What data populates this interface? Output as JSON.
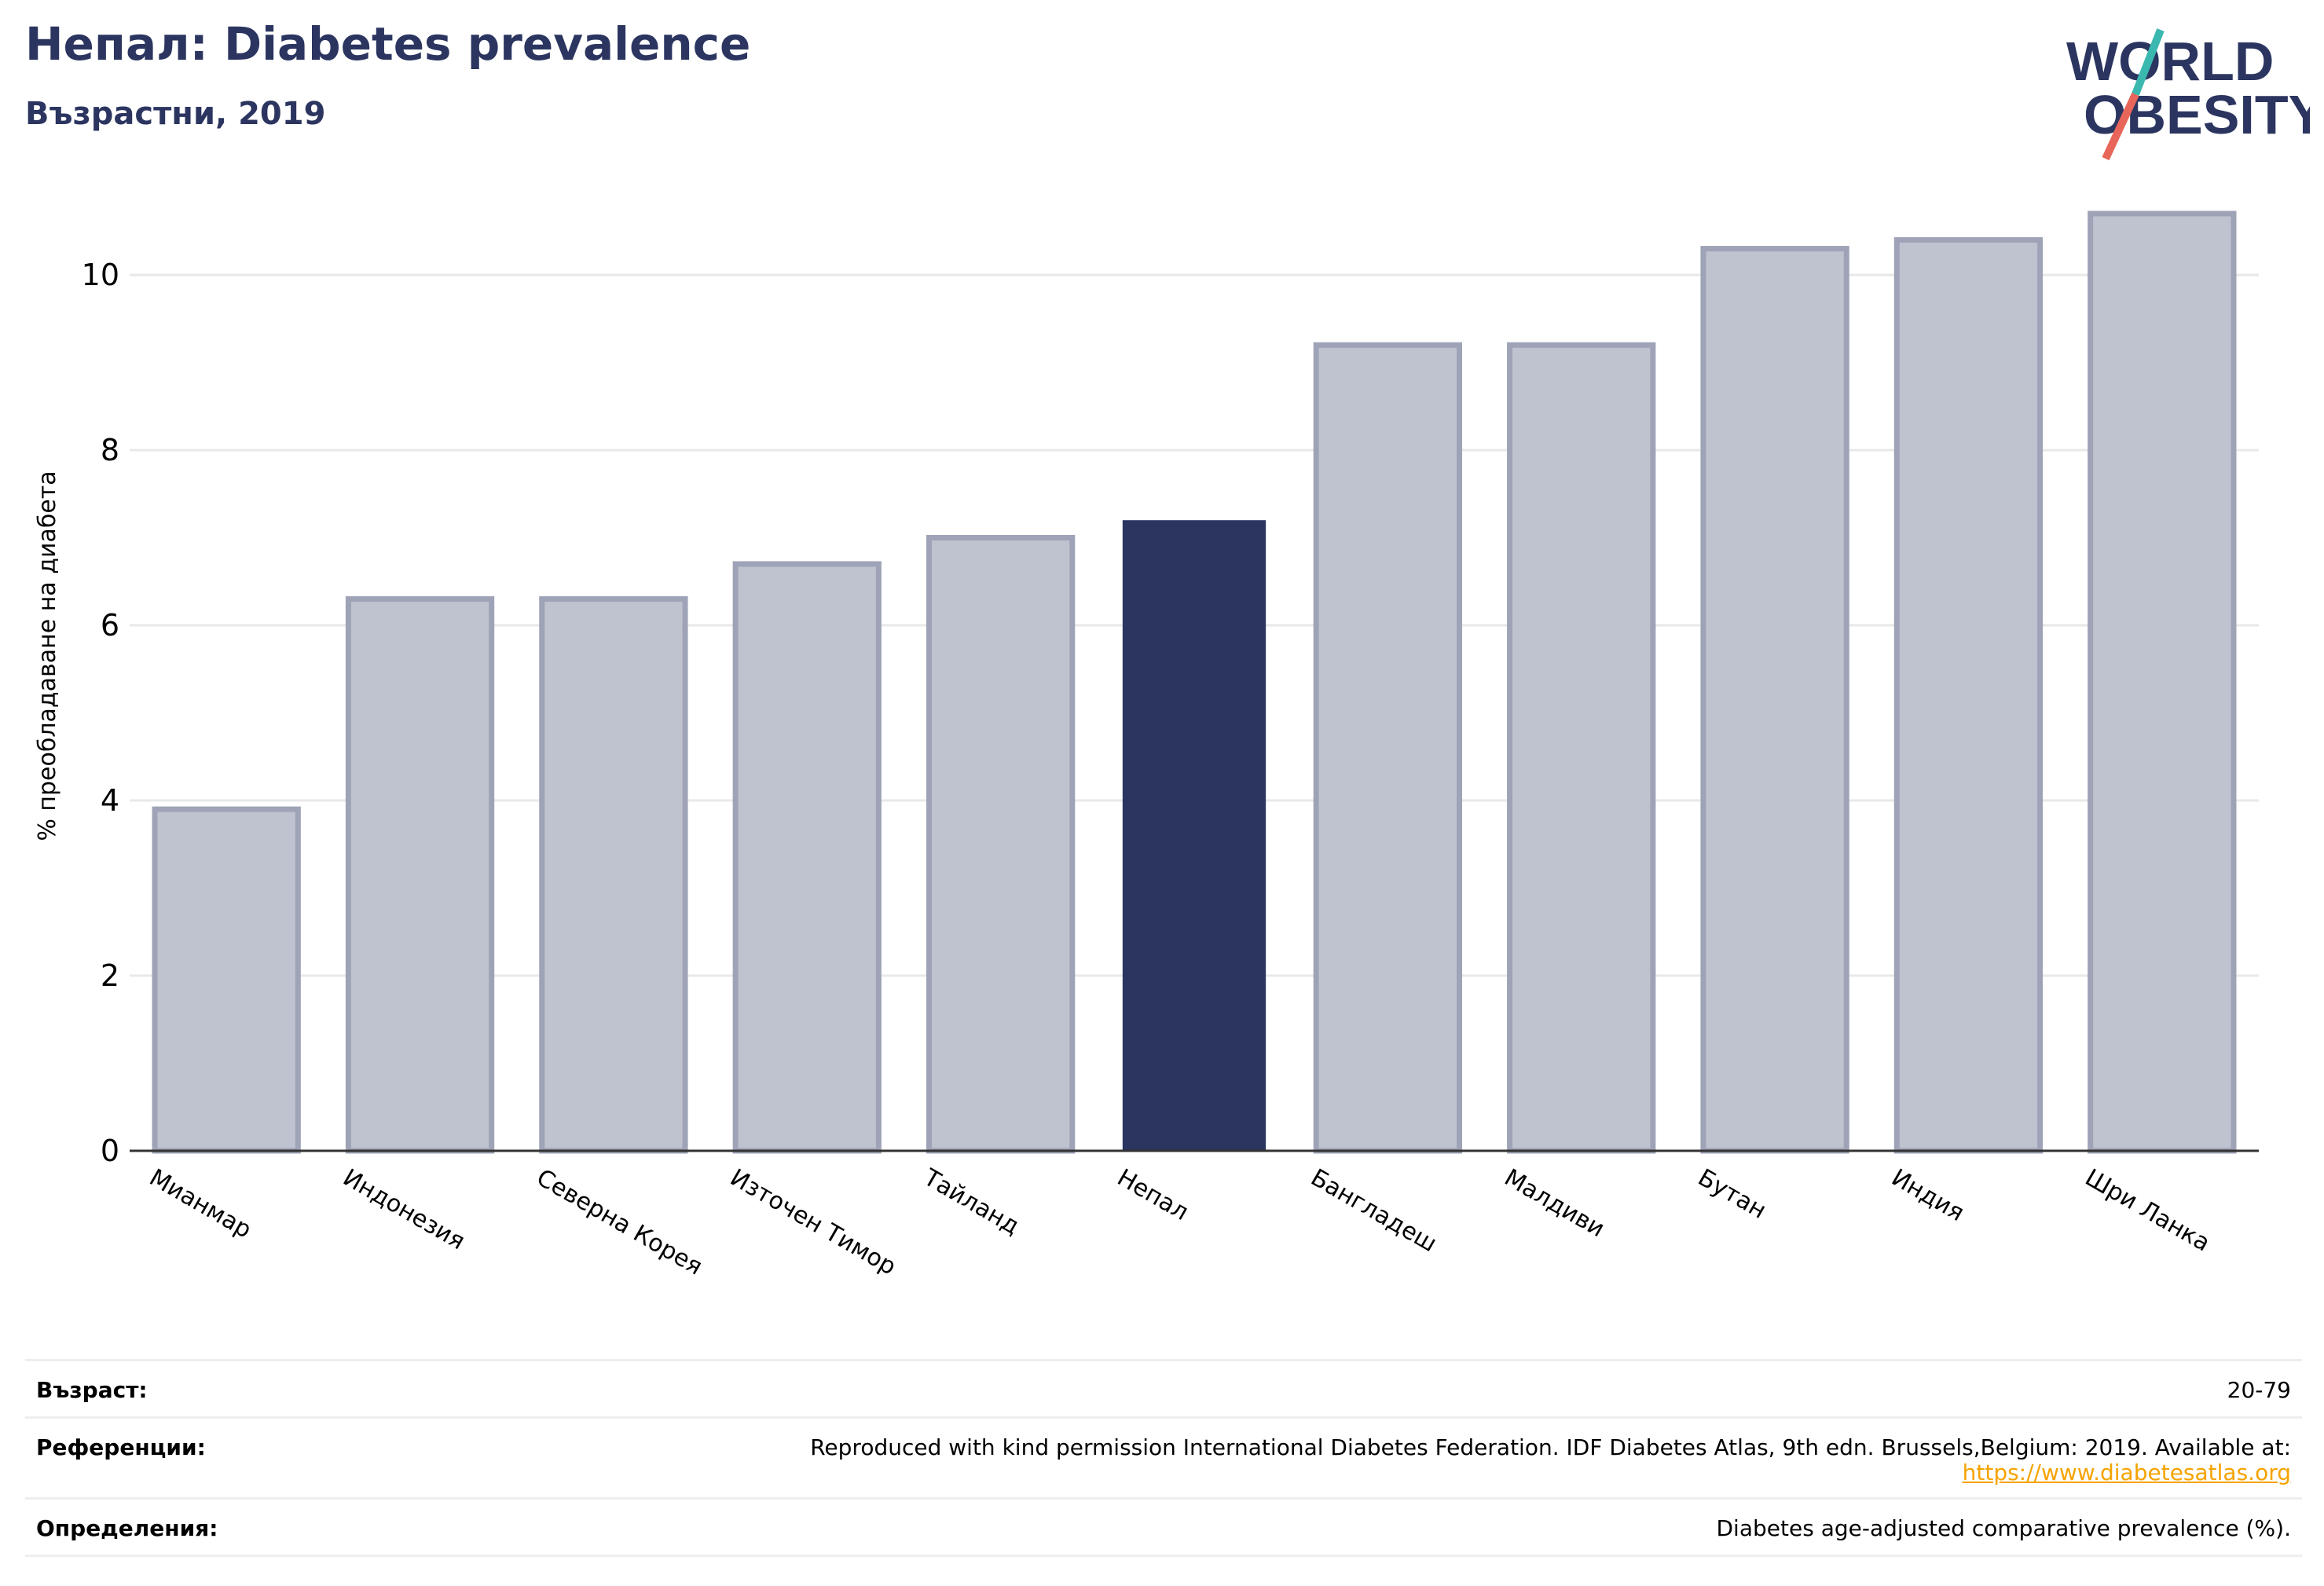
{
  "header": {
    "title": "Непал: Diabetes prevalence",
    "subtitle": "Възрастни, 2019"
  },
  "logo": {
    "line1": "WORLD",
    "line2": "OBESITY",
    "accent_teal": "#3ab8b0",
    "accent_red": "#e8655a",
    "color": "#2b3560"
  },
  "colors": {
    "highlight": "#2b3560",
    "bar": "#bfc2cf",
    "bar_border": "#9ea3b7"
  },
  "chart_data": {
    "type": "bar",
    "ylabel": "% преобладаване на диабета",
    "ylim": [
      0,
      11
    ],
    "yticks": [
      0,
      2,
      4,
      6,
      8,
      10
    ],
    "grid": true,
    "categories": [
      "Мианмар",
      "Индонезия",
      "Северна Корея",
      "Източен Тимор",
      "Тайланд",
      "Непал",
      "Бангладеш",
      "Малдиви",
      "Бутан",
      "Индия",
      "Шри Ланка"
    ],
    "values": [
      3.9,
      6.3,
      6.3,
      6.7,
      7.0,
      7.2,
      9.2,
      9.2,
      10.3,
      10.4,
      10.7
    ],
    "highlight_index": 5
  },
  "footer": {
    "age_label": "Възраст:",
    "age_value": "20-79",
    "ref_label": "Референции:",
    "ref_text": "Reproduced with kind permission International Diabetes Federation. IDF Diabetes Atlas, 9th edn. Brussels,Belgium: 2019. Available at:",
    "ref_link": "https://www.diabetesatlas.org",
    "def_label": "Определения:",
    "def_value": "Diabetes age-adjusted comparative prevalence (%)."
  }
}
